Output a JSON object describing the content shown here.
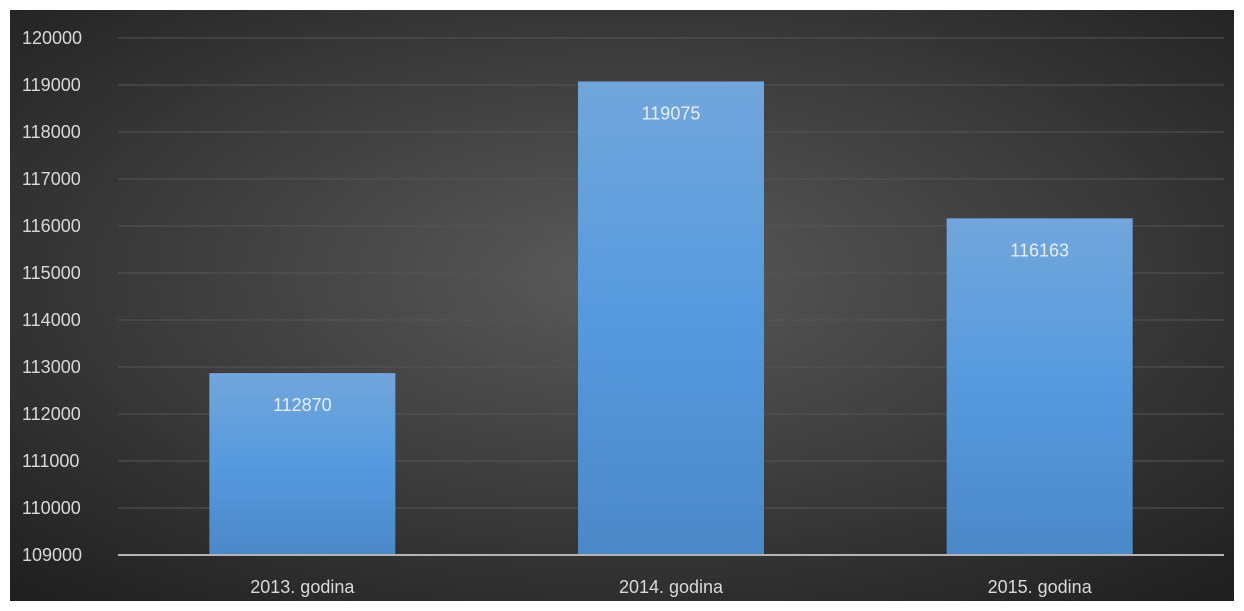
{
  "chart_data": {
    "type": "bar",
    "categories": [
      "2013. godina",
      "2014. godina",
      "2015. godina"
    ],
    "values": [
      112870,
      119075,
      116163
    ],
    "data_labels": [
      "112870",
      "119075",
      "116163"
    ],
    "title": "",
    "xlabel": "",
    "ylabel": "",
    "ylim": [
      109000,
      120000
    ],
    "ytick_step": 1000,
    "grid": true,
    "legend": "none"
  },
  "colors": {
    "background_center": "#5a5a5a",
    "background_edge": "#1e1e1e",
    "bar_top": "#72a6dc",
    "bar_middle": "#559ade",
    "bar_bottom": "#4b88c8",
    "gridline": "#555555",
    "axis_line": "#b4b4b4",
    "text": "#d9d9d9"
  }
}
